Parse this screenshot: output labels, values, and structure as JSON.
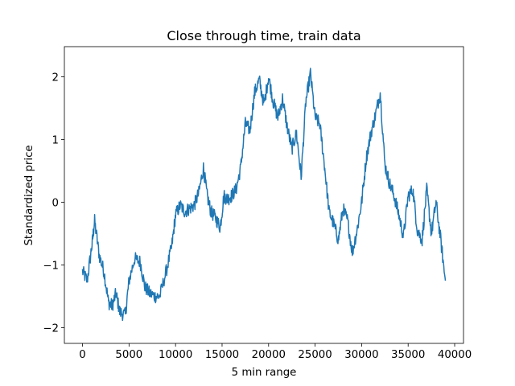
{
  "chart_data": {
    "type": "line",
    "title": "Close through time, train data",
    "xlabel": "5 min range",
    "ylabel": "Standardized price",
    "xlim": [
      -1950,
      40950
    ],
    "ylim": [
      -2.25,
      2.48
    ],
    "xticks": [
      0,
      5000,
      10000,
      15000,
      20000,
      25000,
      30000,
      35000,
      40000
    ],
    "yticks": [
      -2,
      -1,
      0,
      1,
      2
    ],
    "xtick_labels": [
      "0",
      "5000",
      "10000",
      "15000",
      "20000",
      "25000",
      "30000",
      "35000",
      "40000"
    ],
    "ytick_labels": [
      "−2",
      "−1",
      "0",
      "1",
      "2"
    ],
    "grid": false,
    "series": [
      {
        "color": "#1f77b4",
        "x": [
          0,
          500,
          1000,
          1300,
          1800,
          2300,
          2800,
          3200,
          3600,
          4000,
          4600,
          5000,
          5600,
          6200,
          6700,
          7200,
          7800,
          8300,
          9000,
          9600,
          10000,
          10500,
          11000,
          11500,
          12000,
          12500,
          13000,
          13400,
          13800,
          14300,
          14800,
          15200,
          15600,
          16000,
          16500,
          17000,
          17500,
          18000,
          18500,
          19000,
          19500,
          20000,
          20500,
          21000,
          21500,
          22000,
          22500,
          23000,
          23500,
          24000,
          24500,
          25000,
          25500,
          26000,
          26500,
          27000,
          27500,
          28000,
          28500,
          29000,
          29500,
          30000,
          30500,
          31000,
          31500,
          32000,
          32500,
          33000,
          33500,
          34000,
          34500,
          35000,
          35500,
          36000,
          36500,
          37000,
          37500,
          38000,
          38500,
          39000
        ],
        "values": [
          -1.1,
          -1.25,
          -0.7,
          -0.3,
          -0.85,
          -1.1,
          -1.6,
          -1.65,
          -1.45,
          -1.75,
          -1.8,
          -1.25,
          -0.9,
          -0.95,
          -1.35,
          -1.45,
          -1.5,
          -1.5,
          -1.1,
          -0.7,
          -0.2,
          -0.05,
          -0.15,
          -0.1,
          -0.05,
          0.15,
          0.55,
          0.1,
          -0.15,
          -0.25,
          -0.4,
          0.1,
          0.05,
          0.1,
          0.2,
          0.55,
          1.25,
          1.15,
          1.75,
          1.95,
          1.55,
          2.0,
          1.6,
          1.35,
          1.65,
          1.2,
          0.85,
          1.1,
          0.4,
          1.6,
          2.05,
          1.35,
          1.25,
          0.6,
          -0.15,
          -0.35,
          -0.6,
          -0.1,
          -0.3,
          -0.8,
          -0.45,
          0.0,
          0.7,
          1.1,
          1.4,
          1.75,
          0.6,
          0.3,
          0.1,
          -0.2,
          -0.55,
          0.1,
          0.2,
          -0.45,
          -0.6,
          0.2,
          -0.5,
          0.0,
          -0.6,
          -1.25
        ]
      }
    ]
  }
}
